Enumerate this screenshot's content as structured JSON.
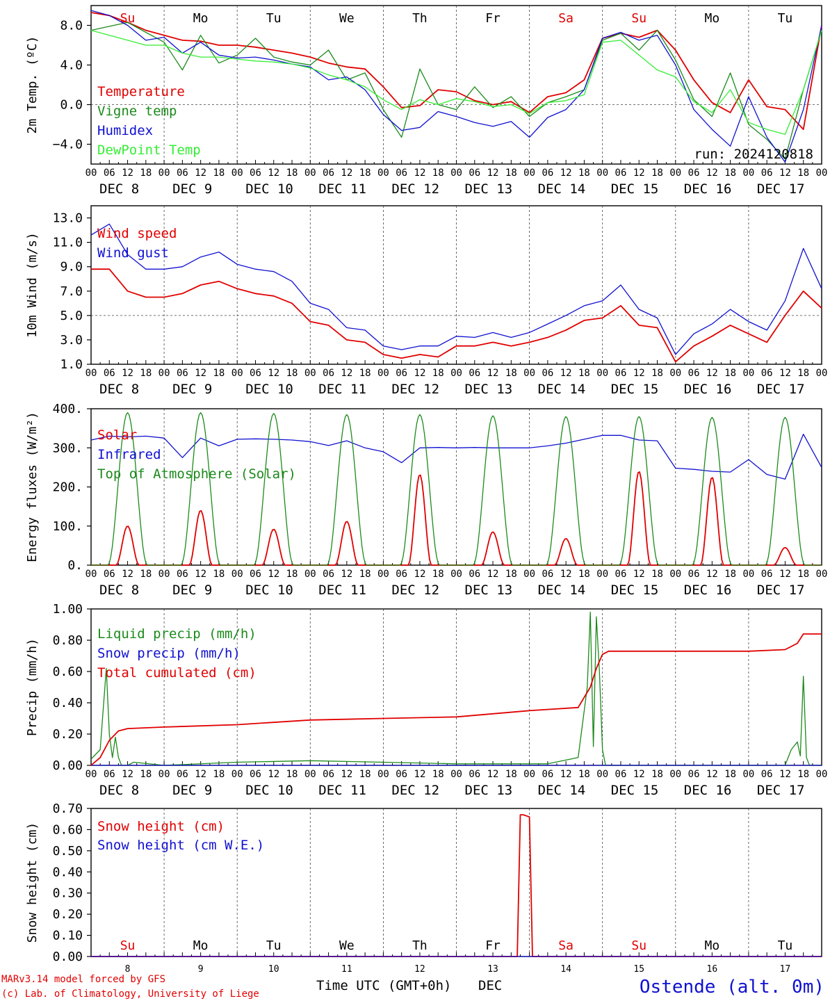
{
  "x_ticks": [
    "00",
    "06",
    "12",
    "18"
  ],
  "last_tick": "00",
  "dates": [
    "DEC  8",
    "DEC  9",
    "DEC 10",
    "DEC 11",
    "DEC 12",
    "DEC 13",
    "DEC 14",
    "DEC 15",
    "DEC 16",
    "DEC 17"
  ],
  "weekdays": [
    {
      "label": "Su",
      "color": "#e00000"
    },
    {
      "label": "Mo",
      "color": "#000000"
    },
    {
      "label": "Tu",
      "color": "#000000"
    },
    {
      "label": "We",
      "color": "#000000"
    },
    {
      "label": "Th",
      "color": "#000000"
    },
    {
      "label": "Fr",
      "color": "#000000"
    },
    {
      "label": "Sa",
      "color": "#e00000"
    },
    {
      "label": "Su",
      "color": "#e00000"
    },
    {
      "label": "Mo",
      "color": "#000000"
    },
    {
      "label": "Tu",
      "color": "#000000"
    }
  ],
  "day_numbers": [
    "8",
    "9",
    "10",
    "11",
    "12",
    "13",
    "14",
    "15",
    "16",
    "17"
  ],
  "footer": {
    "model": "MARv3.14 model forced by GFS",
    "lab": "(c) Lab. of Climatology, University of Liege",
    "axis_title": "Time UTC (GMT+0h)",
    "month": "DEC",
    "station": "Ostende (alt. 0m)"
  },
  "colors": {
    "red": "#e00000",
    "green": "#1a8a1a",
    "blue": "#1010d0",
    "light_green": "#33ee33"
  },
  "chart_data": [
    {
      "type": "line",
      "id": "temp",
      "ylabel": "2m Temp. (ºC)",
      "ylim": [
        -6,
        10
      ],
      "yticks": [
        8,
        4,
        0,
        -4
      ],
      "ytick_labels": [
        "8.0",
        "4.0",
        "0.0",
        "−4.0"
      ],
      "ref_line": 0,
      "annotation": "run: 2024120818",
      "series": [
        {
          "name": "Temperature",
          "color": "#e00000",
          "x": [
            0,
            6,
            12,
            18,
            24,
            30,
            36,
            42,
            48,
            54,
            60,
            66,
            72,
            78,
            84,
            90,
            96,
            102,
            108,
            114,
            120,
            126,
            132,
            138,
            144,
            150,
            156,
            162,
            168,
            174,
            180,
            186,
            192,
            198,
            204,
            210,
            216,
            222,
            228,
            234,
            240
          ],
          "y": [
            9.3,
            9.0,
            8.3,
            7.5,
            7.0,
            6.5,
            6.4,
            6.0,
            6.0,
            5.8,
            5.5,
            5.2,
            4.8,
            4.2,
            3.8,
            3.6,
            1.8,
            -0.3,
            -0.1,
            1.5,
            1.3,
            0.4,
            0.0,
            0.3,
            -0.8,
            0.8,
            1.2,
            2.5,
            6.7,
            7.2,
            6.8,
            7.5,
            5.5,
            2.5,
            0.2,
            -0.8,
            2.5,
            -0.2,
            -0.5,
            -2.5,
            8.0
          ]
        },
        {
          "name": "Vigne temp",
          "color": "#1a8a1a",
          "x": [
            0,
            6,
            12,
            18,
            24,
            30,
            36,
            42,
            48,
            54,
            60,
            66,
            72,
            78,
            84,
            90,
            96,
            102,
            108,
            114,
            120,
            126,
            132,
            138,
            144,
            150,
            156,
            162,
            168,
            174,
            180,
            186,
            192,
            198,
            204,
            210,
            216,
            222,
            228,
            234,
            240
          ],
          "y": [
            7.5,
            7.9,
            8.3,
            7.3,
            6.3,
            3.5,
            7.0,
            4.2,
            5.0,
            6.7,
            4.8,
            4.3,
            4.0,
            5.5,
            2.5,
            3.2,
            -0.5,
            -3.3,
            3.6,
            0.0,
            -0.5,
            1.8,
            -0.3,
            0.8,
            -1.2,
            0.2,
            0.8,
            1.5,
            6.5,
            7.2,
            5.5,
            7.5,
            4.5,
            0.5,
            -1.2,
            3.2,
            -2.0,
            -3.5,
            -5.5,
            1.5,
            7.5
          ]
        },
        {
          "name": "Humidex",
          "color": "#1010d0",
          "x": [
            0,
            6,
            12,
            18,
            24,
            30,
            36,
            42,
            48,
            54,
            60,
            66,
            72,
            78,
            84,
            90,
            96,
            102,
            108,
            114,
            120,
            126,
            132,
            138,
            144,
            150,
            156,
            162,
            168,
            174,
            180,
            186,
            192,
            198,
            204,
            210,
            216,
            222,
            228,
            234,
            240
          ],
          "y": [
            9.5,
            9.0,
            8.0,
            6.5,
            6.8,
            5.2,
            6.3,
            5.0,
            4.7,
            4.8,
            4.5,
            4.1,
            3.8,
            2.5,
            2.8,
            1.5,
            -1.0,
            -2.6,
            -2.3,
            -0.7,
            -1.2,
            -1.8,
            -2.2,
            -1.7,
            -3.3,
            -1.3,
            -0.5,
            1.5,
            6.7,
            7.3,
            6.5,
            7.0,
            4.0,
            -0.5,
            -2.5,
            -4.2,
            0.8,
            -3.3,
            -5.8,
            -0.5,
            8.0
          ]
        },
        {
          "name": "DewPoint Temp",
          "color": "#33ee33",
          "x": [
            0,
            6,
            12,
            18,
            24,
            30,
            36,
            42,
            48,
            54,
            60,
            66,
            72,
            78,
            84,
            90,
            96,
            102,
            108,
            114,
            120,
            126,
            132,
            138,
            144,
            150,
            156,
            162,
            168,
            174,
            180,
            186,
            192,
            198,
            204,
            210,
            216,
            222,
            228,
            234,
            240
          ],
          "y": [
            7.5,
            7.0,
            6.5,
            6.0,
            6.0,
            5.2,
            4.8,
            4.8,
            4.6,
            4.4,
            4.3,
            4.1,
            3.7,
            3.0,
            2.5,
            1.8,
            0.5,
            -0.5,
            0.5,
            0.0,
            0.6,
            0.3,
            -0.2,
            0.0,
            -0.9,
            0.2,
            0.4,
            1.0,
            6.3,
            6.5,
            5.0,
            3.5,
            2.8,
            0.3,
            -0.8,
            1.5,
            -1.8,
            -2.5,
            -3.0,
            1.5,
            7.5
          ]
        }
      ]
    },
    {
      "type": "line",
      "id": "wind",
      "ylabel": "10m Wind (m/s)",
      "ylim": [
        1,
        14
      ],
      "yticks": [
        13,
        11,
        9,
        7,
        5,
        3,
        1
      ],
      "ytick_labels": [
        "13.0",
        "11.0",
        "9.0",
        "7.0",
        "5.0",
        "3.0",
        "1.0"
      ],
      "ref_line": 5,
      "series": [
        {
          "name": "Wind speed",
          "color": "#e00000",
          "x": [
            0,
            6,
            12,
            18,
            24,
            30,
            36,
            42,
            48,
            54,
            60,
            66,
            72,
            78,
            84,
            90,
            96,
            102,
            108,
            114,
            120,
            126,
            132,
            138,
            144,
            150,
            156,
            162,
            168,
            174,
            180,
            186,
            192,
            198,
            204,
            210,
            216,
            222,
            228,
            234,
            240
          ],
          "y": [
            8.8,
            8.8,
            7.0,
            6.5,
            6.5,
            6.8,
            7.5,
            7.8,
            7.2,
            6.8,
            6.6,
            6.0,
            4.5,
            4.2,
            3.0,
            2.8,
            1.8,
            1.5,
            1.8,
            1.6,
            2.5,
            2.5,
            2.8,
            2.5,
            2.8,
            3.2,
            3.8,
            4.6,
            4.8,
            5.8,
            4.2,
            4.0,
            1.2,
            2.5,
            3.3,
            4.2,
            3.5,
            2.8,
            5.0,
            7.0,
            5.6
          ]
        },
        {
          "name": "Wind gust",
          "color": "#1010d0",
          "x": [
            0,
            6,
            12,
            18,
            24,
            30,
            36,
            42,
            48,
            54,
            60,
            66,
            72,
            78,
            84,
            90,
            96,
            102,
            108,
            114,
            120,
            126,
            132,
            138,
            144,
            150,
            156,
            162,
            168,
            174,
            180,
            186,
            192,
            198,
            204,
            210,
            216,
            222,
            228,
            234,
            240
          ],
          "y": [
            11.6,
            12.5,
            10.0,
            8.8,
            8.8,
            9.0,
            9.8,
            10.2,
            9.2,
            8.8,
            8.6,
            7.8,
            6.0,
            5.5,
            4.0,
            3.8,
            2.5,
            2.2,
            2.5,
            2.5,
            3.3,
            3.2,
            3.6,
            3.2,
            3.6,
            4.3,
            5.0,
            5.8,
            6.2,
            7.5,
            5.5,
            4.8,
            1.8,
            3.5,
            4.3,
            5.5,
            4.5,
            3.8,
            6.2,
            10.5,
            7.2
          ]
        }
      ]
    },
    {
      "type": "line",
      "id": "energy",
      "ylabel": "Energy fluxes (W/m²)",
      "ylim": [
        0,
        400
      ],
      "yticks": [
        400,
        300,
        200,
        100,
        0
      ],
      "ytick_labels": [
        "400.",
        "300.",
        "200.",
        "100.",
        "0."
      ],
      "series": [
        {
          "name": "Solar",
          "color": "#e00000",
          "peaks": [
            100,
            140,
            92,
            112,
            232,
            85,
            68,
            240,
            225,
            45
          ]
        },
        {
          "name": "Infrared",
          "color": "#1010d0",
          "x": [
            0,
            6,
            12,
            18,
            24,
            30,
            36,
            42,
            48,
            54,
            60,
            66,
            72,
            78,
            84,
            90,
            96,
            102,
            108,
            114,
            120,
            126,
            132,
            138,
            144,
            150,
            156,
            162,
            168,
            174,
            180,
            186,
            192,
            198,
            204,
            210,
            216,
            222,
            228,
            234,
            240
          ],
          "y": [
            320,
            330,
            328,
            330,
            325,
            275,
            325,
            305,
            322,
            323,
            322,
            320,
            316,
            306,
            318,
            300,
            290,
            262,
            300,
            301,
            300,
            301,
            300,
            300,
            300,
            305,
            312,
            322,
            332,
            332,
            320,
            318,
            248,
            245,
            240,
            238,
            270,
            232,
            220,
            335,
            250
          ]
        },
        {
          "name": "Top of Atmosphere (Solar)",
          "color": "#1a8a1a",
          "peaks": [
            390,
            390,
            388,
            385,
            385,
            382,
            380,
            380,
            378,
            378
          ]
        }
      ]
    },
    {
      "type": "line",
      "id": "precip",
      "ylabel": "Precip (mm/h)",
      "ylim": [
        0,
        1
      ],
      "yticks": [
        1,
        0.8,
        0.6,
        0.4,
        0.2,
        0
      ],
      "ytick_labels": [
        "1.00",
        "0.80",
        "0.60",
        "0.40",
        "0.20",
        "0.00"
      ],
      "series": [
        {
          "name": "Liquid precip (mm/h)",
          "color": "#1a8a1a",
          "x": [
            0,
            3,
            5,
            6,
            7,
            8,
            9,
            10,
            12,
            14,
            24,
            48,
            72,
            96,
            120,
            150,
            160,
            163,
            164,
            165,
            166,
            167,
            168,
            169,
            171,
            172,
            174,
            228,
            230,
            232,
            233,
            234,
            235,
            236,
            240
          ],
          "y": [
            0.04,
            0.1,
            0.62,
            0.2,
            0.05,
            0.18,
            0.05,
            0.0,
            0.0,
            0.02,
            0.0,
            0.02,
            0.03,
            0.02,
            0.01,
            0.01,
            0.05,
            0.5,
            0.98,
            0.12,
            0.95,
            0.6,
            0.1,
            0.0,
            0.0,
            0.0,
            0.0,
            0.0,
            0.1,
            0.15,
            0.06,
            0.57,
            0.05,
            0.0,
            0.0
          ]
        },
        {
          "name": "Snow precip (mm/h)",
          "color": "#1010d0",
          "x": [
            0,
            240
          ],
          "y": [
            0,
            0
          ]
        },
        {
          "name": "Total cumulated (cm)",
          "color": "#e00000",
          "x": [
            0,
            3,
            6,
            9,
            12,
            24,
            48,
            72,
            96,
            120,
            144,
            160,
            164,
            166,
            168,
            170,
            216,
            228,
            232,
            234,
            240
          ],
          "y": [
            0.0,
            0.05,
            0.16,
            0.22,
            0.235,
            0.245,
            0.26,
            0.29,
            0.3,
            0.31,
            0.35,
            0.37,
            0.5,
            0.62,
            0.71,
            0.73,
            0.73,
            0.74,
            0.78,
            0.84,
            0.84
          ]
        }
      ]
    },
    {
      "type": "line",
      "id": "snow",
      "ylabel": "Snow height (cm)",
      "ylim": [
        0,
        0.7
      ],
      "yticks": [
        0.7,
        0.6,
        0.5,
        0.4,
        0.3,
        0.2,
        0.1,
        0
      ],
      "ytick_labels": [
        "0.70",
        "0.60",
        "0.50",
        "0.40",
        "0.30",
        "0.20",
        "0.10",
        "0.00"
      ],
      "series": [
        {
          "name": "Snow height (cm)",
          "color": "#e00000",
          "x": [
            0,
            140,
            141,
            142,
            144,
            145,
            240
          ],
          "y": [
            0,
            0,
            0.67,
            0.67,
            0.66,
            0,
            0
          ]
        },
        {
          "name": "Snow height (cm W.E.)",
          "color": "#1010d0",
          "x": [
            0,
            240
          ],
          "y": [
            0,
            0
          ]
        }
      ]
    }
  ]
}
